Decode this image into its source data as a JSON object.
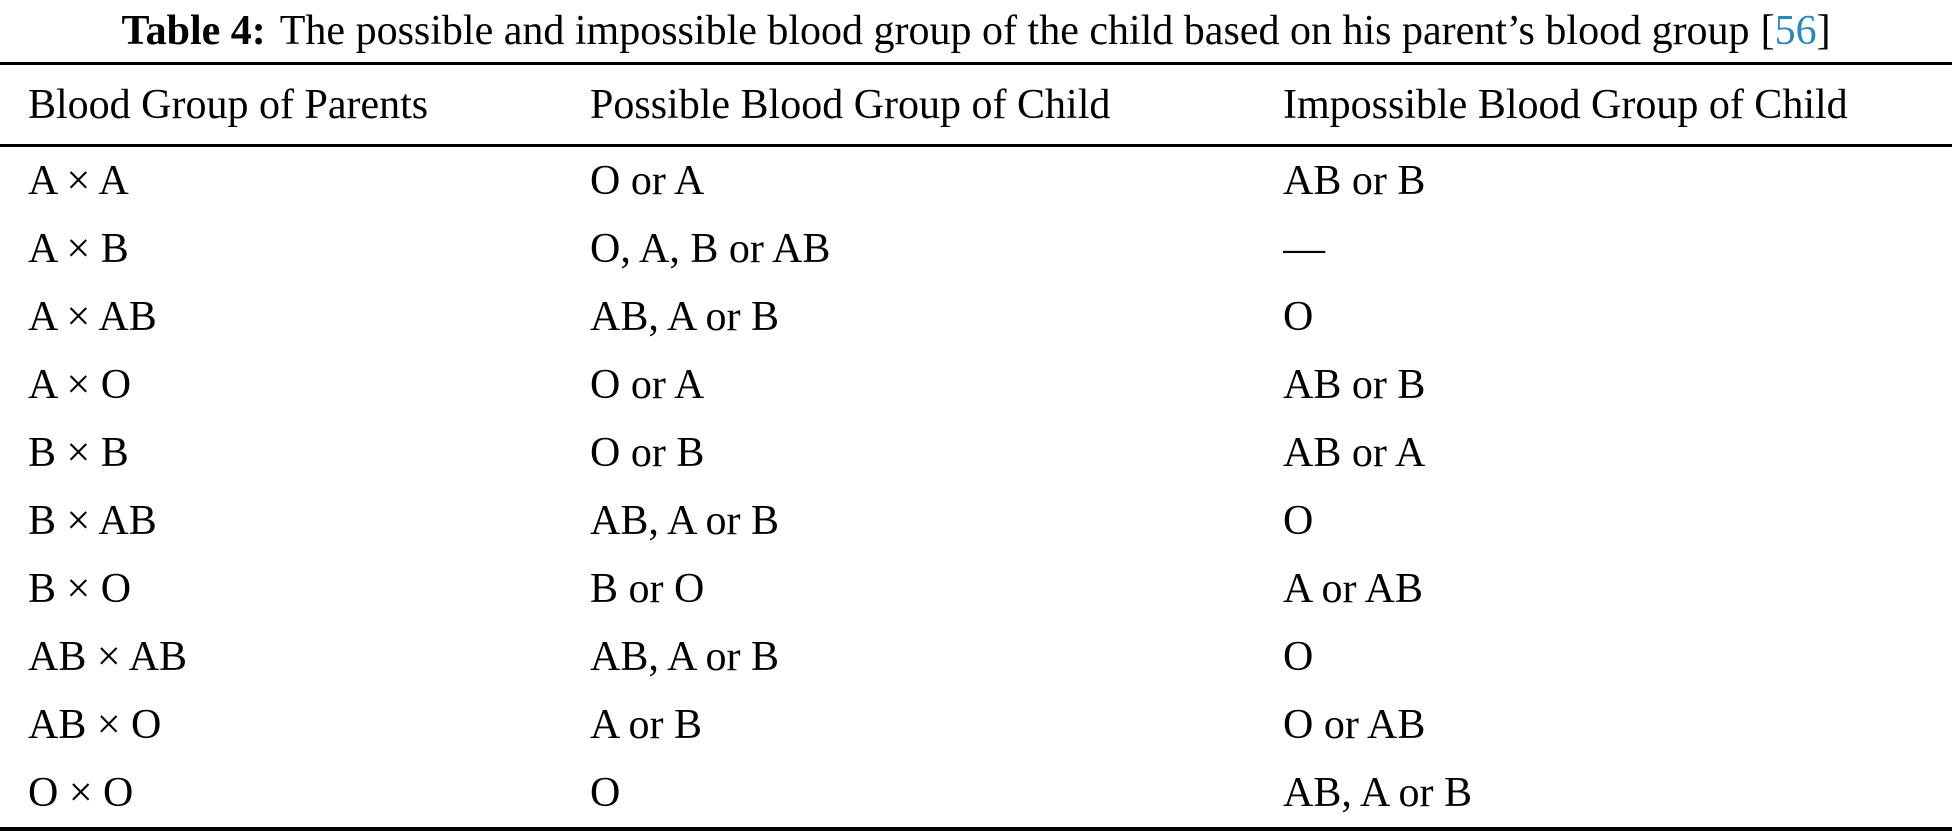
{
  "caption": {
    "label": "Table 4:",
    "text": "The possible and impossible blood group of the child based on his parent’s blood group",
    "citation_open": "[",
    "citation_number": "56",
    "citation_close": "]",
    "citation_color": "#2e86ba"
  },
  "table": {
    "columns": [
      "Blood Group of Parents",
      "Possible Blood Group of Child",
      "Impossible Blood Group of Child"
    ],
    "rows": [
      [
        "A × A",
        "O or A",
        "AB or B"
      ],
      [
        "A × B",
        "O, A, B or AB",
        "—"
      ],
      [
        "A × AB",
        "AB, A or B",
        "O"
      ],
      [
        "A × O",
        "O or A",
        "AB or B"
      ],
      [
        "B × B",
        "O or B",
        "AB or A"
      ],
      [
        "B × AB",
        "AB, A or B",
        "O"
      ],
      [
        "B × O",
        "B or O",
        "A or AB"
      ],
      [
        "AB × AB",
        "AB, A or B",
        "O"
      ],
      [
        "AB × O",
        "A or B",
        "O or AB"
      ],
      [
        "O × O",
        "O",
        "AB, A or B"
      ]
    ]
  },
  "colors": {
    "text": "#000000",
    "background": "#ffffff",
    "rule": "#000000",
    "citation": "#2e86ba"
  }
}
